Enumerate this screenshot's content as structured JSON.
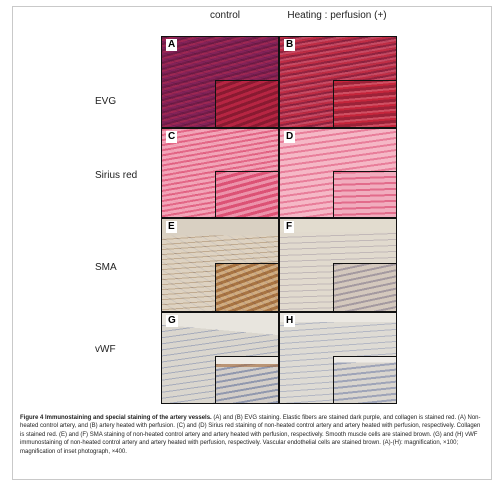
{
  "columns": {
    "control": "control",
    "heating": "Heating : perfusion (+)"
  },
  "rows": [
    {
      "label": "EVG",
      "left": "A",
      "right": "B"
    },
    {
      "label": "Sirius red",
      "left": "C",
      "right": "D"
    },
    {
      "label": "SMA",
      "left": "E",
      "right": "F"
    },
    {
      "label": "vWF",
      "left": "G",
      "right": "H"
    }
  ],
  "caption": {
    "title": "Figure 4 Immunostaining and special staining of the artery vessels.",
    "body": " (A) and (B) EVG staining. Elastic fibers are stained dark purple, and collagen is stained red. (A) Non-heated control artery, and (B) artery heated with perfusion. (C) and (D) Sirius red staining of non-heated control artery and artery heated with perfusion, respectively. Collagen is stained red. (E) and (F) SMA staining of non-heated control artery and artery heated with perfusion, respectively. Smooth muscle cells are stained brown. (G) and (H) vWF immunostaining of non-heated control artery and artery heated with perfusion, respectively. Vascular endothelial cells are stained brown. (A)-(H): magnification, ×100; magnification of inset photograph, ×400."
  }
}
